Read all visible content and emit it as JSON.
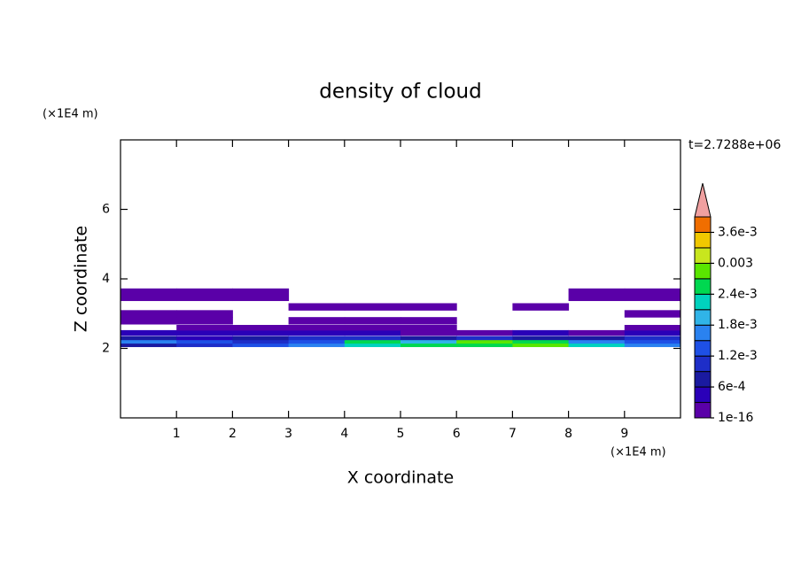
{
  "chart_data": {
    "type": "contour",
    "title": "density of cloud",
    "xlabel": "X coordinate",
    "ylabel": "Z coordinate",
    "xunit": "(×1E4 m)",
    "yunit": "(×1E4 m)",
    "time_label": "t=2.7288e+06",
    "xlim": [
      0,
      10
    ],
    "xticks": [
      1,
      2,
      3,
      4,
      5,
      6,
      7,
      8,
      9
    ],
    "ylim": [
      0,
      8
    ],
    "yticks": [
      2,
      4,
      6
    ],
    "x": [
      0.5,
      1.5,
      2.5,
      3.5,
      4.5,
      5.5,
      6.5,
      7.5,
      8.5,
      9.5
    ],
    "z": [
      2.1,
      2.2,
      2.3,
      2.45,
      2.6,
      2.8,
      3.0,
      3.2,
      3.55
    ],
    "values": [
      [
        0.0006,
        0.0009,
        0.0012,
        0.0015,
        0.0021,
        0.0024,
        0.0024,
        0.0027,
        0.0021,
        0.0015
      ],
      [
        0.0015,
        0.0012,
        0.0009,
        0.0012,
        0.0024,
        0.0018,
        0.0027,
        0.0024,
        0.0015,
        0.0012
      ],
      [
        0.0006,
        0.0003,
        0.0006,
        0.0009,
        0.0009,
        0.0006,
        0.0009,
        0.0006,
        0.0006,
        0.0009
      ],
      [
        0.0003,
        0.0003,
        0.0003,
        0.0003,
        0.0003,
        0.0001,
        0.0002,
        0.0003,
        0.0001,
        0.0003
      ],
      [
        null,
        0.0002,
        0.0001,
        0.0001,
        0.0001,
        0.0001,
        null,
        null,
        null,
        0.0001
      ],
      [
        0.0001,
        0.0001,
        null,
        0.0001,
        0.0001,
        0.0001,
        null,
        null,
        null,
        null
      ],
      [
        0.0001,
        0.0001,
        null,
        null,
        null,
        null,
        null,
        null,
        null,
        0.0001
      ],
      [
        null,
        null,
        null,
        0.0001,
        0.0001,
        0.0001,
        null,
        0.0001,
        null,
        null
      ],
      [
        0.0001,
        0.0001,
        0.0001,
        null,
        null,
        null,
        null,
        null,
        0.0001,
        0.0001
      ]
    ],
    "levels": [
      1e-16,
      0.0003,
      0.0006,
      0.0009,
      0.0012,
      0.0015,
      0.0018,
      0.0021,
      0.0024,
      0.0027,
      0.003,
      0.0033,
      0.0036,
      0.0039
    ],
    "colors": [
      "#5a00a8",
      "#2a00b8",
      "#1a1aa0",
      "#1e2ec8",
      "#1e50e6",
      "#2a82f0",
      "#30b4e8",
      "#00d2be",
      "#00d850",
      "#5ae600",
      "#c8e61e",
      "#f0c800",
      "#f06e00",
      "#f0a0a0"
    ],
    "colorbar_ticks": [
      1e-16,
      {
        "value": 0.0006,
        "label": "6e-4"
      },
      {
        "value": 0.0012,
        "label": "1.2e-3"
      },
      {
        "value": 0.0018,
        "label": "1.8e-3"
      },
      {
        "value": 0.0024,
        "label": "2.4e-3"
      },
      0.003,
      {
        "value": 0.0036,
        "label": "3.6e-3"
      }
    ]
  }
}
